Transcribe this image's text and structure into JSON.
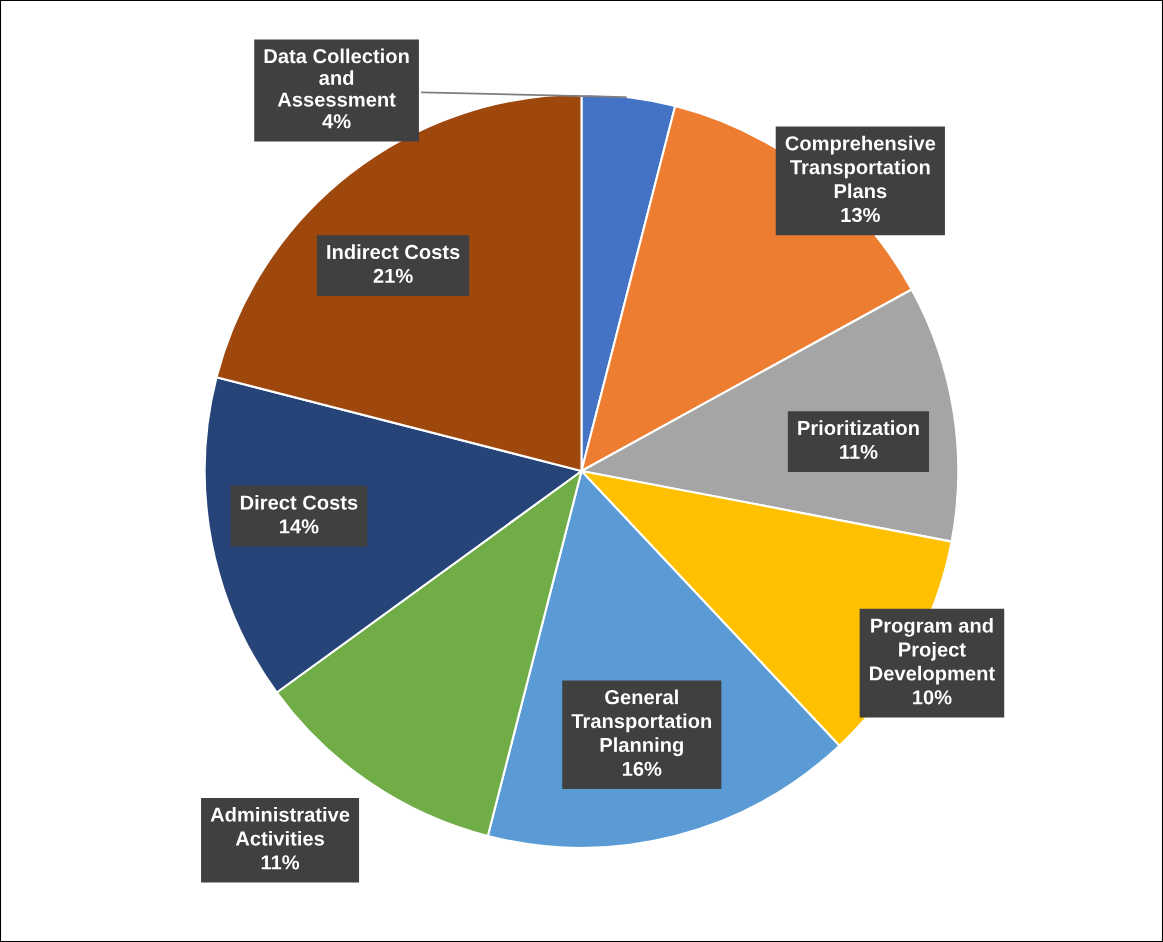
{
  "chart_data": {
    "type": "pie",
    "categories": [
      "Data Collection and Assessment",
      "Comprehensive Transportation Plans",
      "Prioritization",
      "Program and Project Development",
      "General Transportation Planning",
      "Administrative Activities",
      "Direct Costs",
      "Indirect Costs"
    ],
    "values": [
      4,
      13,
      11,
      10,
      16,
      11,
      14,
      21
    ],
    "colors": [
      "#4472c4",
      "#ed7d31",
      "#a5a5a5",
      "#ffc000",
      "#5b9bd5",
      "#70ad47",
      "#264478",
      "#9e480e"
    ],
    "value_labels": [
      "4%",
      "13%",
      "11%",
      "10%",
      "16%",
      "11%",
      "14%",
      "21%"
    ],
    "legend": false
  }
}
